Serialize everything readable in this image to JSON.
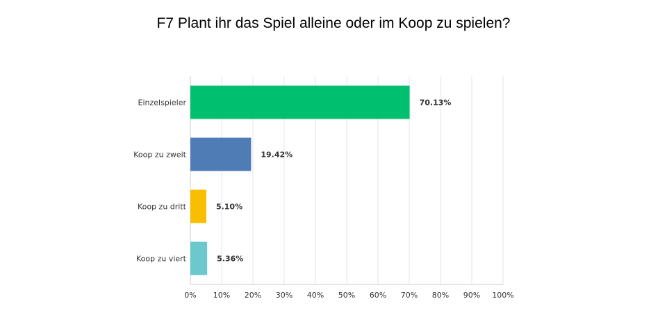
{
  "title": "F7 Plant ihr das Spiel alleine oder im Koop zu spielen?",
  "chart_data": {
    "type": "bar",
    "orientation": "horizontal",
    "title": "F7 Plant ihr das Spiel alleine oder im Koop zu spielen?",
    "categories": [
      "Einzelspieler",
      "Koop zu zweit",
      "Koop zu dritt",
      "Koop zu viert"
    ],
    "values": [
      70.13,
      19.42,
      5.1,
      5.36
    ],
    "value_labels": [
      "70.13%",
      "19.42%",
      "5.10%",
      "5.36%"
    ],
    "colors": [
      "#00bf6f",
      "#507cb6",
      "#f9be00",
      "#6bc8cd"
    ],
    "xlim": [
      0,
      100
    ],
    "x_ticks": [
      "0%",
      "10%",
      "20%",
      "30%",
      "40%",
      "50%",
      "60%",
      "70%",
      "80%",
      "90%",
      "100%"
    ],
    "grid": true,
    "legend": "none"
  }
}
